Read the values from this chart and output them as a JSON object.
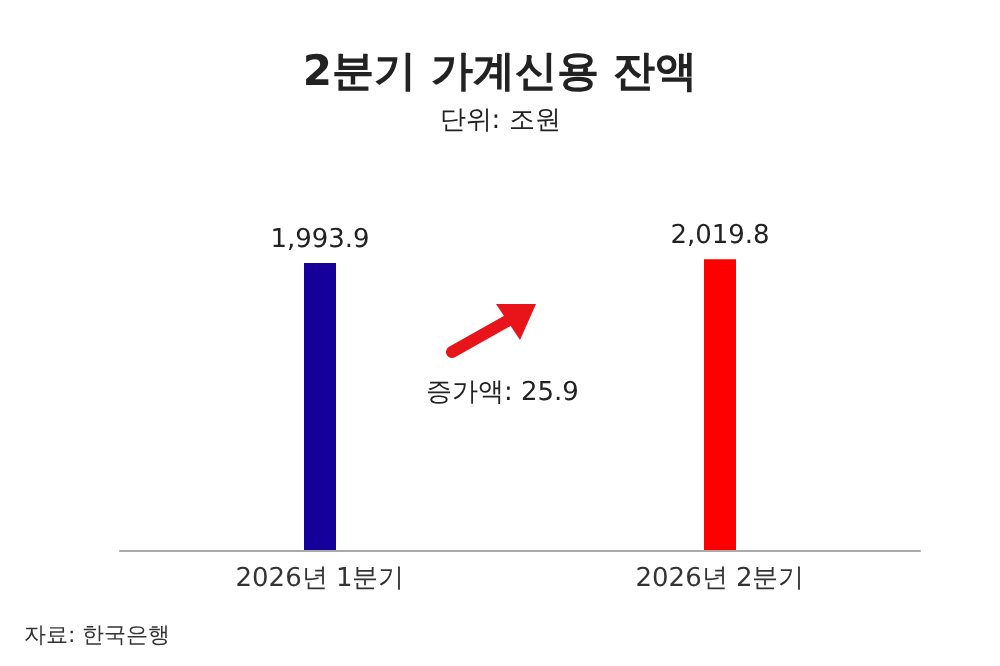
{
  "chart_data": {
    "type": "bar",
    "title": "2분기 가계신용 잔액",
    "subtitle": "단위: 조원",
    "categories": [
      "2026년 1분기",
      "2026년 2분기"
    ],
    "values": [
      1993.9,
      2019.8
    ],
    "colors": [
      "#15009a",
      "#ff0000"
    ],
    "data_labels": true,
    "value_labels": [
      "1,993.9",
      "2,019.8"
    ],
    "annotations": [
      "증가액: 25.9",
      "자료: 한국은행"
    ]
  }
}
